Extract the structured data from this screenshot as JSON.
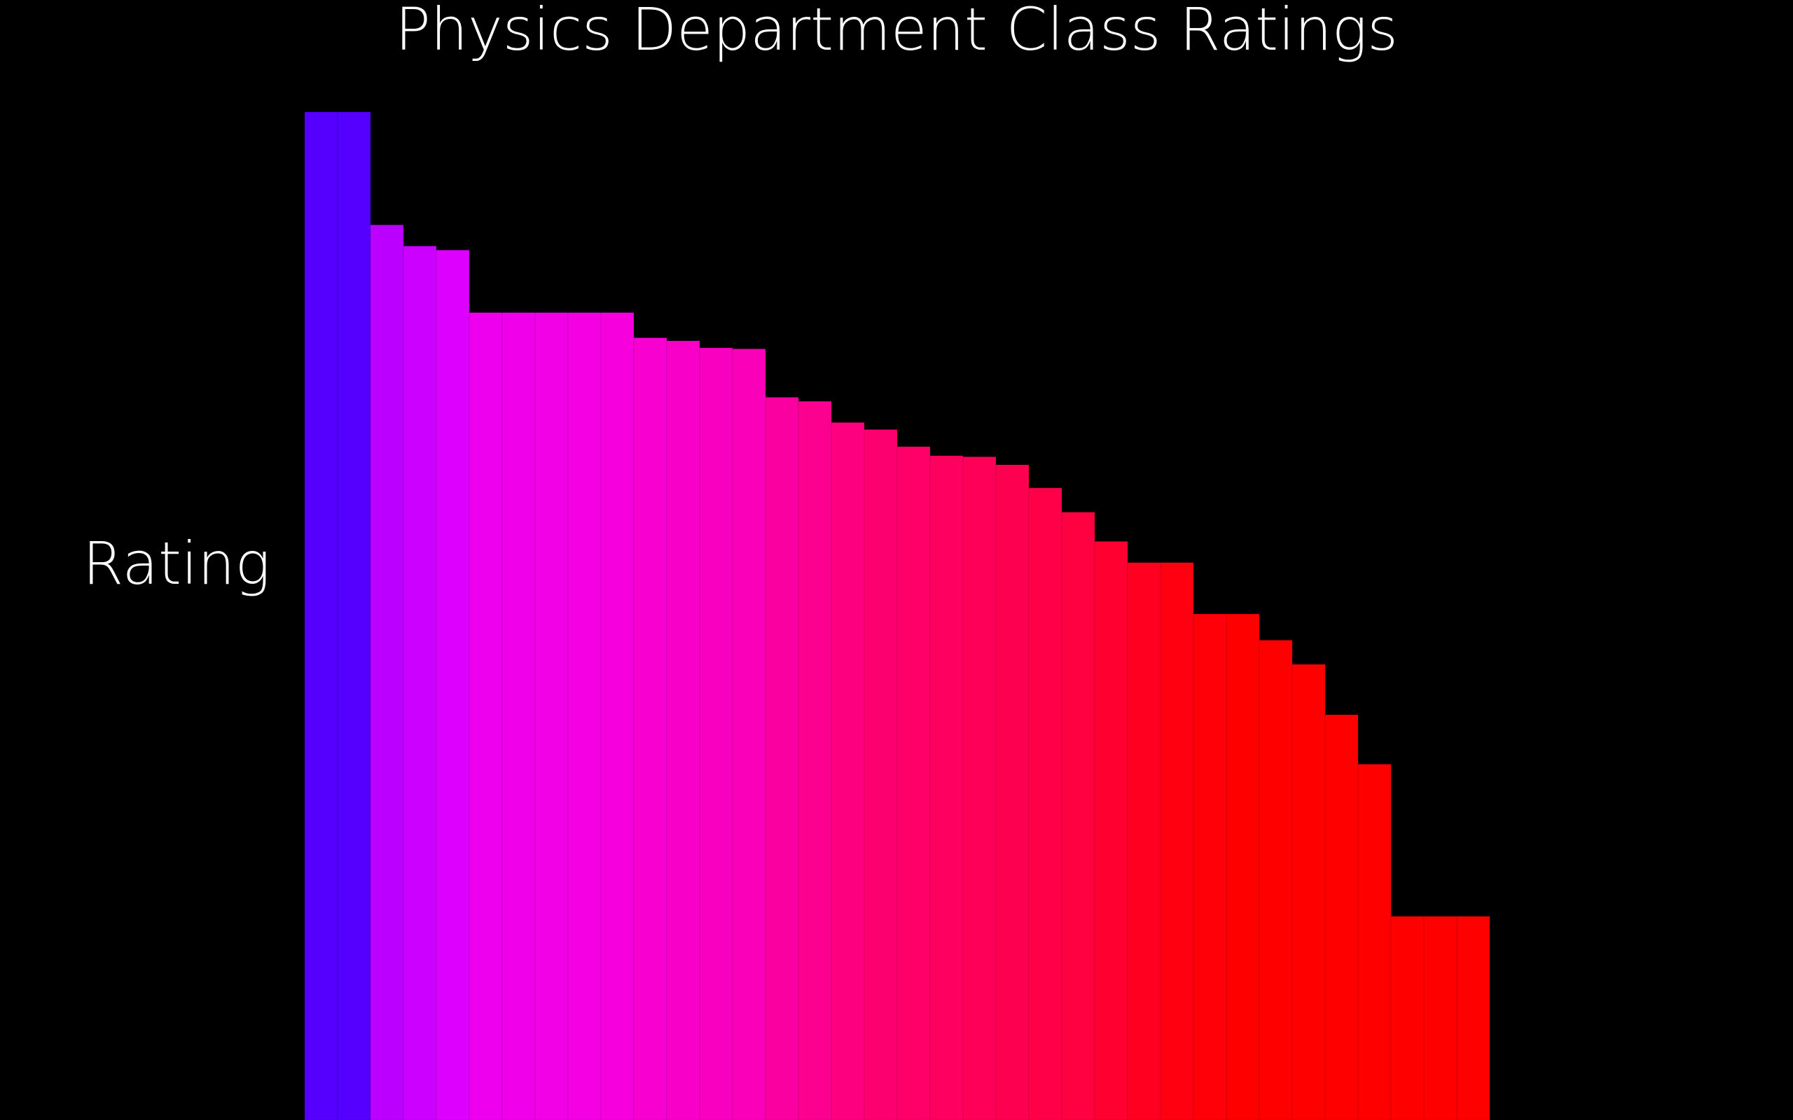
{
  "chart_data": {
    "type": "bar",
    "title": "Physics Department Class Ratings",
    "xlabel": "",
    "ylabel": "Rating",
    "ylim": [
      0,
      100
    ],
    "grid": false,
    "legend": "none",
    "bar_colors": [
      "#5500ff",
      "#5500ff",
      "#bb00ff",
      "#cc00ff",
      "#dd00ff",
      "#ee00ee",
      "#f000ea",
      "#f200e6",
      "#f400e2",
      "#f600de",
      "#f700d0",
      "#f800c8",
      "#f900c0",
      "#fa00b8",
      "#fb00a0",
      "#fc0090",
      "#fd0080",
      "#fd0070",
      "#fe0068",
      "#fe0060",
      "#fe0058",
      "#fe0050",
      "#ff0048",
      "#ff0040",
      "#ff0030",
      "#ff0020",
      "#ff0010",
      "#ff0008",
      "#ff0000",
      "#ff0000",
      "#ff0000",
      "#ff0000",
      "#ff0000",
      "#ff0000",
      "#ff0000",
      "#ff0000"
    ],
    "values": [
      100,
      100,
      88.8,
      86.7,
      86.3,
      80.1,
      80.1,
      80.1,
      80.1,
      80.1,
      77.6,
      77.3,
      76.6,
      76.5,
      71.7,
      71.3,
      69.2,
      68.5,
      66.8,
      65.9,
      65.8,
      65.0,
      62.7,
      60.3,
      57.4,
      55.3,
      55.3,
      50.2,
      50.2,
      47.6,
      45.2,
      40.2,
      35.3,
      20.2,
      20.2,
      20.2
    ]
  }
}
